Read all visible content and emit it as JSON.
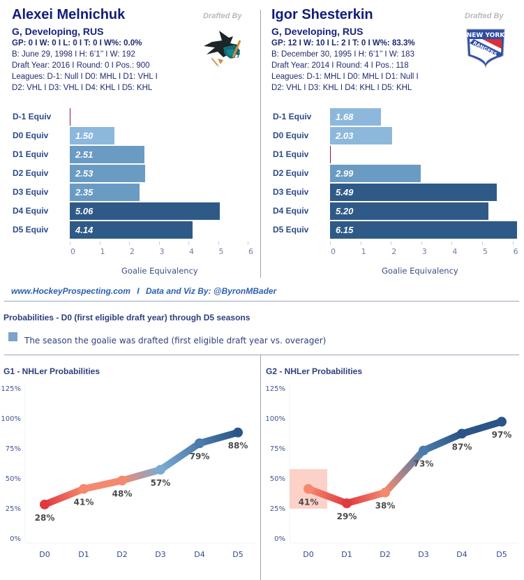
{
  "players": [
    {
      "name": "Alexei Melnichuk",
      "subtitle": "G, Developing, RUS",
      "stats_line": "GP: 0 I W: 0 I L: 0  I T: 0  I W%: 0.0%",
      "bio_line": "B: June 29, 1998 I H: 6’1’’ I W: 192",
      "draft_line": "Draft Year: 2016 I Round: 0 I Pos.: 900",
      "leagues_line1": "Leagues: D-1: Null I D0: MHL I D1: VHL I",
      "leagues_line2": "D2: VHL I D3: VHL I D4: KHL I D5: KHL",
      "drafted_by_label": "Drafted By",
      "team_logo": "san-jose-sharks-logo"
    },
    {
      "name": "Igor Shesterkin",
      "subtitle": "G, Developing, RUS",
      "stats_line": "GP: 12 I W: 10 I L: 2  I T: 0  I W%: 83.3%",
      "bio_line": "B: December 30, 1995 I H: 6’1’’ I W: 183",
      "draft_line": "Draft Year: 2014 I Round: 4 I Pos.: 118",
      "leagues_line1": "Leagues: D-1: MHL I D0: MHL I D1: Null I",
      "leagues_line2": "D2: VHL I D3: KHL I D4: KHL I D5: KHL",
      "drafted_by_label": "Drafted By",
      "team_logo": "new-york-rangers-logo",
      "team_logo_text_top": "NEW YORK",
      "team_logo_text_band": "RANGERS"
    }
  ],
  "footer": {
    "site": "www.HockeyProspecting.com",
    "separator": "I",
    "credit": "Data and Viz By: @ByronMBader"
  },
  "probabilities_section": {
    "title": "Probabilities - D0 (first eligible draft year) through D5 seasons",
    "legend_label": "The season the goalie was drafted (first eligible draft year vs. overager)",
    "legend_color": "#7ba3cc"
  },
  "colors": {
    "bar_light": "#8db8dc",
    "bar_mid": "#6a9bc3",
    "bar_dark": "#2f5a88",
    "zero_marker": "#8b1a3a",
    "line_low": "#e03a3e",
    "line_mid": "#f4896f",
    "line_light_blue": "#79abd3",
    "line_high": "#2b5587",
    "draft_highlight": "#fbc9bd"
  },
  "chart_data": [
    {
      "type": "bar",
      "orientation": "horizontal",
      "player": "Alexei Melnichuk",
      "categories": [
        "D-1 Equiv",
        "D0 Equiv",
        "D1 Equiv",
        "D2  Equiv",
        "D3 Equiv",
        "D4  Equiv",
        "D5 Equiv"
      ],
      "values": [
        0,
        1.5,
        2.51,
        2.53,
        2.35,
        5.06,
        4.14
      ],
      "value_labels": [
        "",
        "1.50",
        "2.51",
        "2.53",
        "2.35",
        "5.06",
        "4.14"
      ],
      "xlabel": "Goalie Equivalency",
      "xlim": [
        0,
        6
      ],
      "xticks": [
        "0",
        "1",
        "2",
        "3",
        "4",
        "5",
        "6"
      ]
    },
    {
      "type": "bar",
      "orientation": "horizontal",
      "player": "Igor Shesterkin",
      "categories": [
        "D-1 Equiv",
        "D0 Equiv",
        "D1 Equiv",
        "D2  Equiv",
        "D3 Equiv",
        "D4  Equiv",
        "D5 Equiv"
      ],
      "values": [
        1.68,
        2.03,
        0,
        2.99,
        5.49,
        5.2,
        6.15
      ],
      "value_labels": [
        "1.68",
        "2.03",
        "",
        "2.99",
        "5.49",
        "5.20",
        "6.15"
      ],
      "xlabel": "Goalie Equivalency",
      "xlim": [
        0,
        6
      ],
      "xticks": [
        "0",
        "1",
        "2",
        "3",
        "4",
        "5",
        "6"
      ]
    },
    {
      "type": "line",
      "title": "G1 - NHLer Probabilities",
      "x": [
        "D0",
        "D1",
        "D2",
        "D3",
        "D4",
        "D5"
      ],
      "values": [
        28,
        41,
        48,
        57,
        79,
        88
      ],
      "value_labels": [
        "28%",
        "41%",
        "48%",
        "57%",
        "79%",
        "88%"
      ],
      "ylim": [
        0,
        125
      ],
      "yticks": [
        "0%",
        "25%",
        "50%",
        "75%",
        "100%",
        "125%"
      ],
      "draft_season_highlight": null
    },
    {
      "type": "line",
      "title": "G2 - NHLer Probabilities",
      "x": [
        "D0",
        "D1",
        "D2",
        "D3",
        "D4",
        "D5"
      ],
      "values": [
        41,
        29,
        38,
        73,
        87,
        97
      ],
      "value_labels": [
        "41%",
        "29%",
        "38%",
        "73%",
        "87%",
        "97%"
      ],
      "ylim": [
        0,
        125
      ],
      "yticks": [
        "0%",
        "25%",
        "50%",
        "75%",
        "100%",
        "125%"
      ],
      "draft_season_highlight": "D0"
    }
  ]
}
